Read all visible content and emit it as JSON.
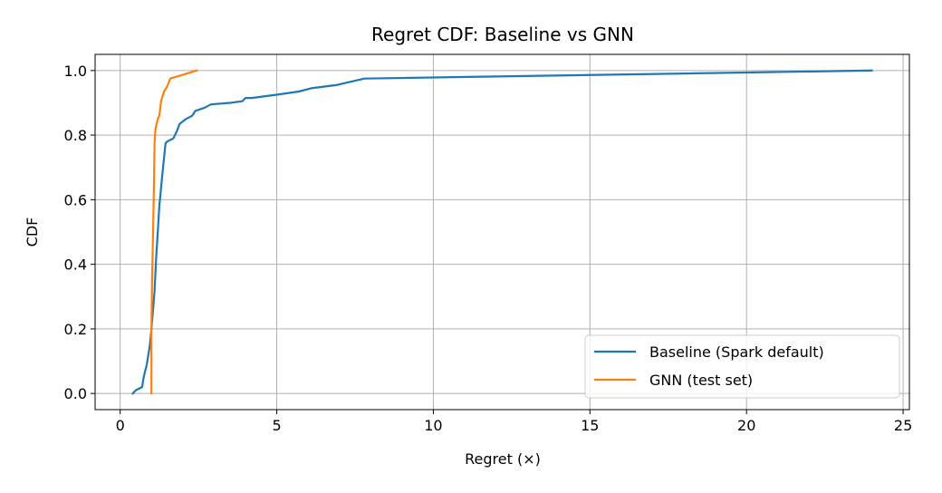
{
  "chart_data": {
    "type": "line",
    "title": "Regret CDF: Baseline vs GNN",
    "xlabel": "Regret (×)",
    "ylabel": "CDF",
    "xlim": [
      -0.8,
      25.2
    ],
    "ylim": [
      -0.05,
      1.05
    ],
    "xticks": [
      0,
      5,
      10,
      15,
      20,
      25
    ],
    "yticks": [
      0.0,
      0.2,
      0.4,
      0.6,
      0.8,
      1.0
    ],
    "xtick_labels": [
      "0",
      "5",
      "10",
      "15",
      "20",
      "25"
    ],
    "ytick_labels": [
      "0.0",
      "0.2",
      "0.4",
      "0.6",
      "0.8",
      "1.0"
    ],
    "grid": true,
    "legend_position": "lower-right",
    "series": [
      {
        "name": "Baseline (Spark default)",
        "color": "#1f77b4",
        "x": [
          0.4,
          0.5,
          0.7,
          0.75,
          0.8,
          0.85,
          0.9,
          0.95,
          1.0,
          1.05,
          1.1,
          1.15,
          1.2,
          1.25,
          1.3,
          1.35,
          1.4,
          1.45,
          1.5,
          1.7,
          1.8,
          1.9,
          2.1,
          2.3,
          2.4,
          2.7,
          2.9,
          3.5,
          3.9,
          4.0,
          4.2,
          5.0,
          5.7,
          6.1,
          6.9,
          7.8,
          24.0
        ],
        "y": [
          0.0,
          0.01,
          0.02,
          0.05,
          0.07,
          0.09,
          0.12,
          0.15,
          0.2,
          0.26,
          0.32,
          0.42,
          0.5,
          0.58,
          0.63,
          0.68,
          0.73,
          0.775,
          0.78,
          0.79,
          0.81,
          0.835,
          0.85,
          0.86,
          0.875,
          0.885,
          0.895,
          0.9,
          0.905,
          0.915,
          0.915,
          0.925,
          0.935,
          0.945,
          0.955,
          0.975,
          1.0
        ]
      },
      {
        "name": "GNN (test set)",
        "color": "#ff7f0e",
        "x": [
          1.0,
          1.0,
          1.02,
          1.05,
          1.08,
          1.1,
          1.13,
          1.2,
          1.25,
          1.3,
          1.32,
          1.4,
          1.5,
          1.6,
          2.45
        ],
        "y": [
          0.0,
          0.2,
          0.35,
          0.5,
          0.65,
          0.78,
          0.82,
          0.85,
          0.86,
          0.9,
          0.91,
          0.935,
          0.95,
          0.975,
          1.0
        ]
      }
    ]
  }
}
